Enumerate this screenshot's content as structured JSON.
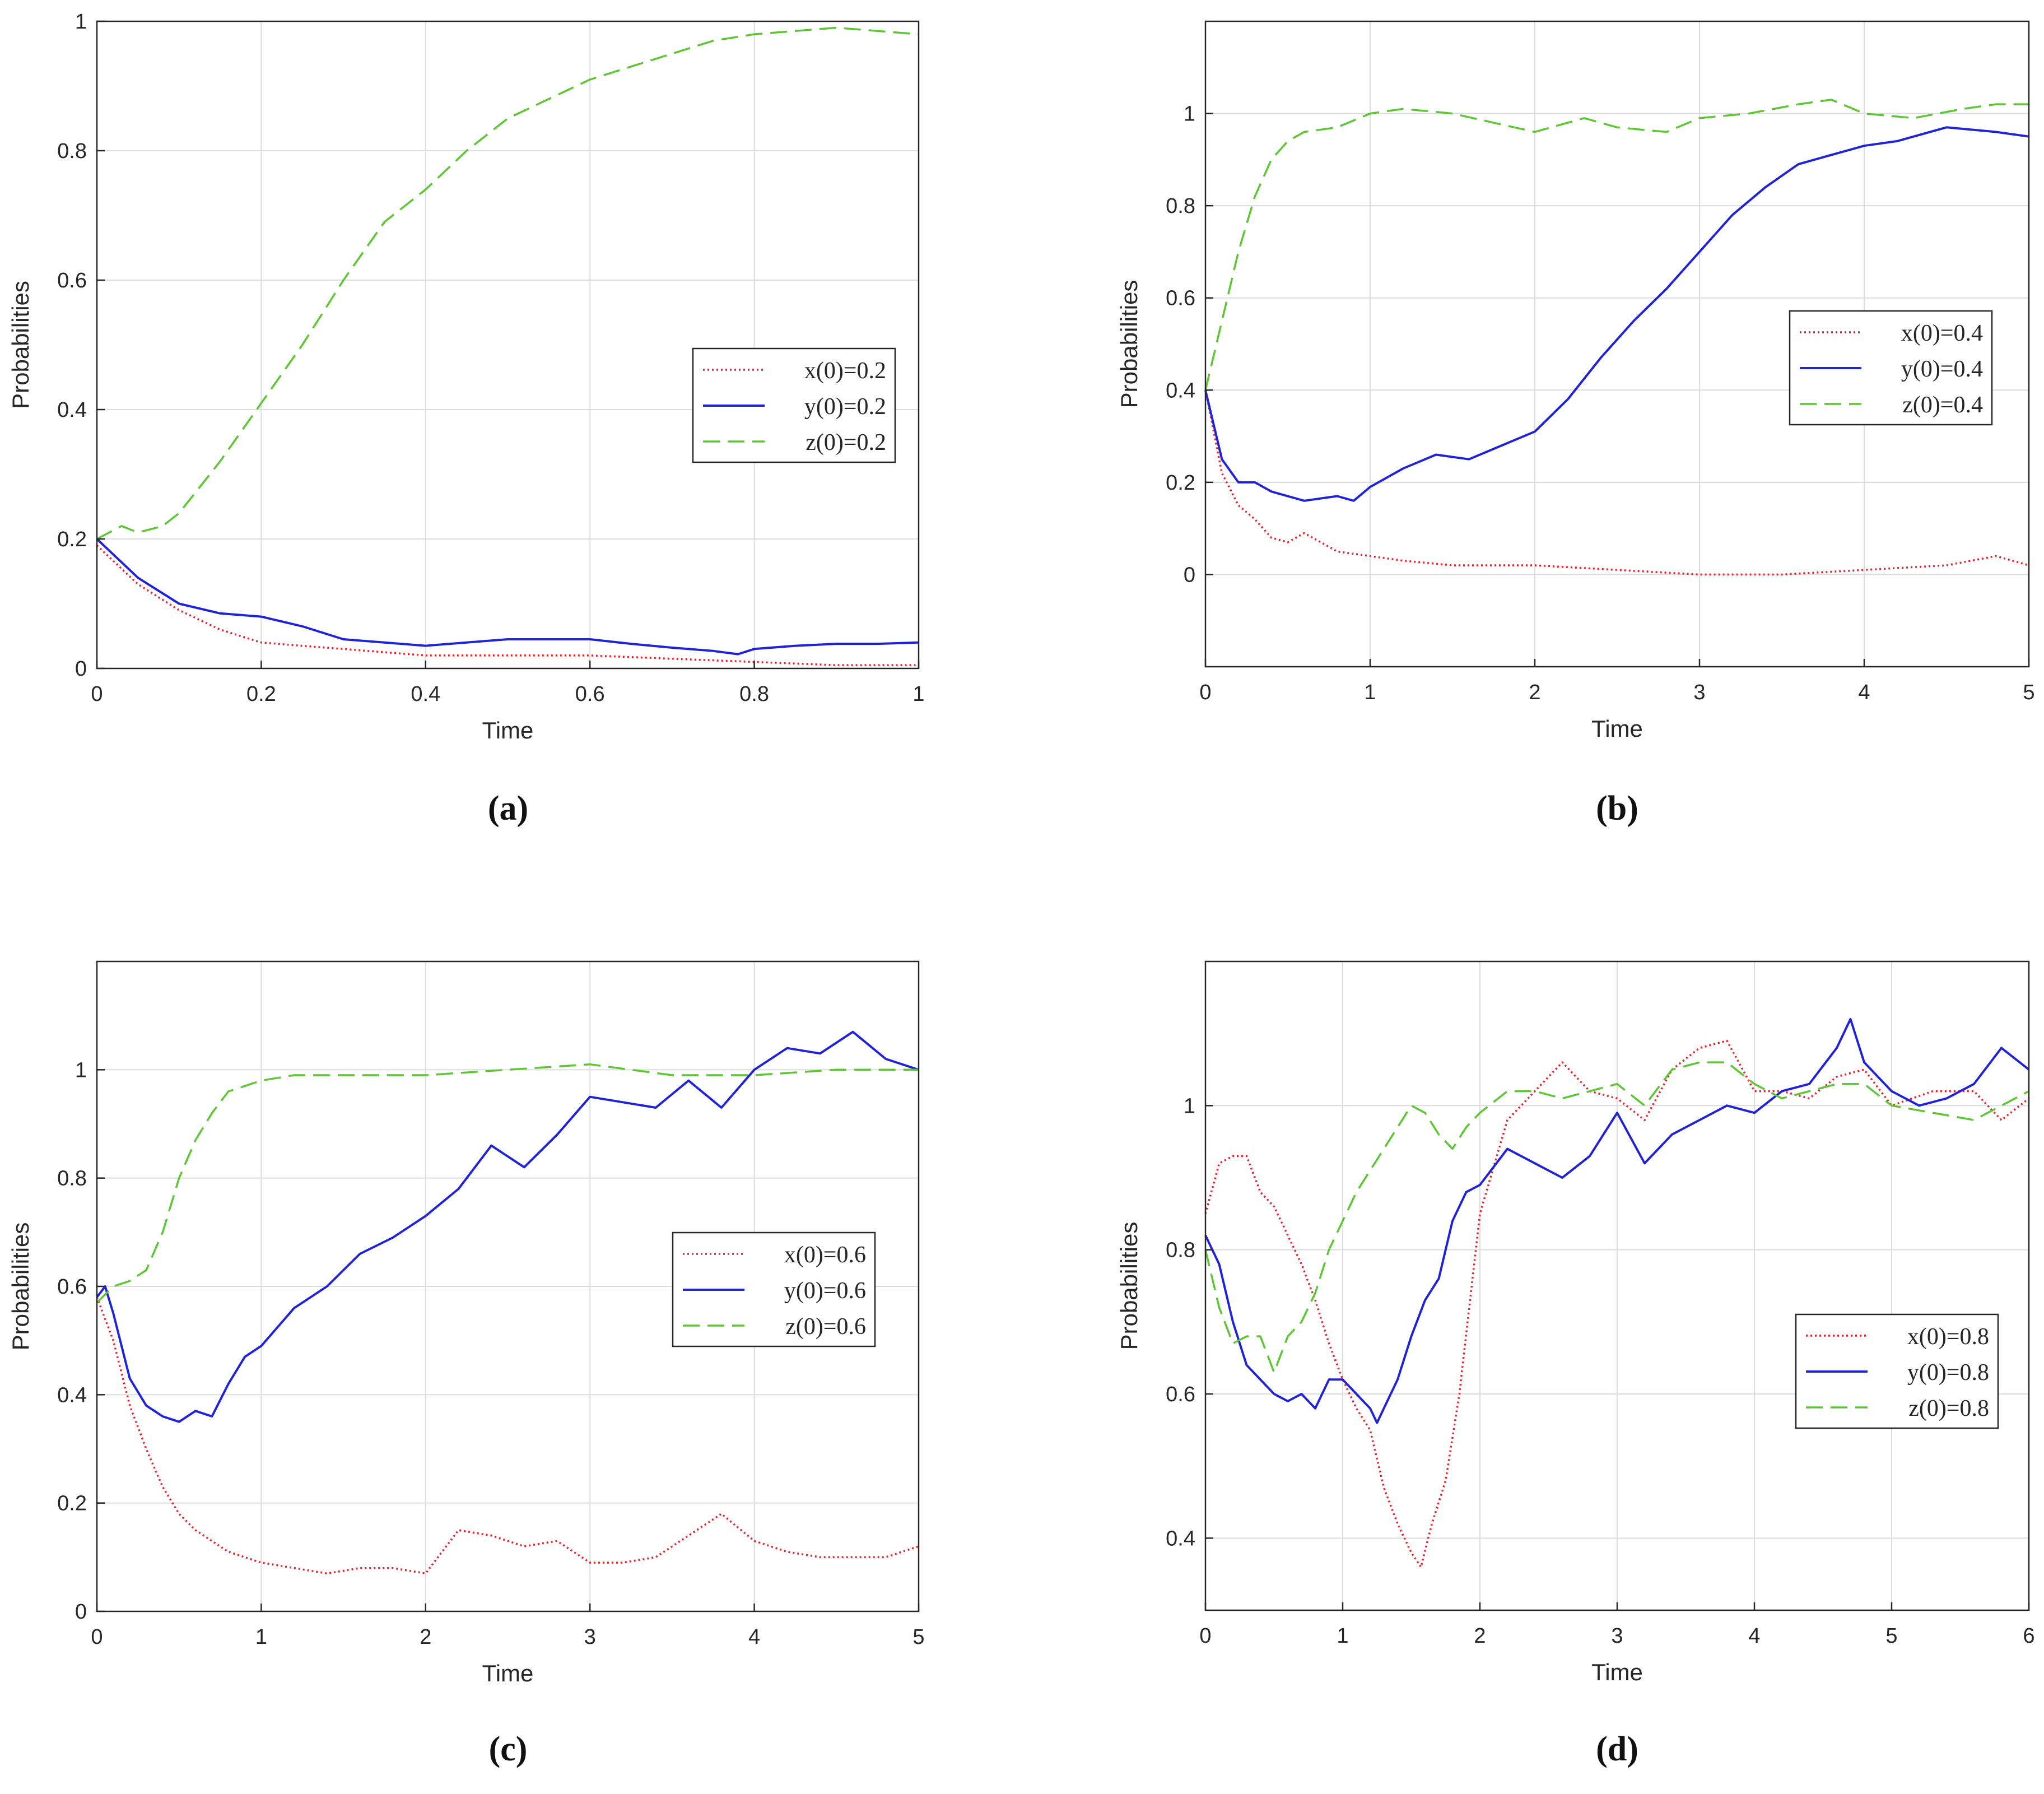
{
  "figure": {
    "panels": [
      "(a)",
      "(b)",
      "(c)",
      "(d)"
    ]
  },
  "chart_data": [
    {
      "id": "a",
      "caption": "(a)",
      "type": "line",
      "xlabel": "Time",
      "ylabel": "Probabilities",
      "xlim": [
        0,
        1
      ],
      "ylim": [
        0,
        1
      ],
      "xticks": [
        0,
        0.2,
        0.4,
        0.6,
        0.8,
        1
      ],
      "xtick_labels": [
        "0",
        "0.2",
        "0.4",
        "0.6",
        "0.8",
        "1"
      ],
      "yticks": [
        0,
        0.2,
        0.4,
        0.6,
        0.8,
        1
      ],
      "ytick_labels": [
        "0",
        "0.2",
        "0.4",
        "0.6",
        "0.8",
        "1"
      ],
      "grid": true,
      "legend_position": "center-right",
      "series": [
        {
          "name": "x(0)=0.2",
          "color": "#e8202a",
          "style": "dotted",
          "x": [
            0,
            0.05,
            0.1,
            0.15,
            0.2,
            0.25,
            0.3,
            0.35,
            0.4,
            0.5,
            0.6,
            0.7,
            0.8,
            0.9,
            1.0
          ],
          "y": [
            0.19,
            0.13,
            0.09,
            0.06,
            0.04,
            0.035,
            0.03,
            0.025,
            0.02,
            0.02,
            0.02,
            0.015,
            0.01,
            0.005,
            0.005
          ]
        },
        {
          "name": "y(0)=0.2",
          "color": "#1f22d8",
          "style": "solid",
          "x": [
            0,
            0.05,
            0.1,
            0.15,
            0.2,
            0.25,
            0.3,
            0.35,
            0.4,
            0.45,
            0.5,
            0.55,
            0.6,
            0.65,
            0.7,
            0.75,
            0.78,
            0.8,
            0.85,
            0.9,
            0.95,
            1.0
          ],
          "y": [
            0.2,
            0.14,
            0.1,
            0.085,
            0.08,
            0.065,
            0.045,
            0.04,
            0.035,
            0.04,
            0.045,
            0.045,
            0.045,
            0.038,
            0.032,
            0.027,
            0.022,
            0.03,
            0.035,
            0.038,
            0.038,
            0.04
          ]
        },
        {
          "name": "z(0)=0.2",
          "color": "#5cc733",
          "style": "dashed",
          "x": [
            0,
            0.03,
            0.05,
            0.08,
            0.1,
            0.15,
            0.2,
            0.25,
            0.3,
            0.35,
            0.4,
            0.45,
            0.5,
            0.55,
            0.6,
            0.65,
            0.7,
            0.75,
            0.8,
            0.85,
            0.9,
            0.95,
            1.0
          ],
          "y": [
            0.2,
            0.22,
            0.21,
            0.22,
            0.24,
            0.32,
            0.41,
            0.5,
            0.6,
            0.69,
            0.74,
            0.8,
            0.85,
            0.88,
            0.91,
            0.93,
            0.95,
            0.97,
            0.98,
            0.985,
            0.99,
            0.985,
            0.98
          ]
        }
      ],
      "legend": [
        "x(0)=0.2",
        "y(0)=0.2",
        "z(0)=0.2"
      ]
    },
    {
      "id": "b",
      "caption": "(b)",
      "type": "line",
      "xlabel": "Time",
      "ylabel": "Probabilities",
      "xlim": [
        0,
        5
      ],
      "ylim": [
        -0.2,
        1.2
      ],
      "xticks": [
        0,
        1,
        2,
        3,
        4,
        5
      ],
      "xtick_labels": [
        "0",
        "1",
        "2",
        "3",
        "4",
        "5"
      ],
      "yticks": [
        0,
        0.2,
        0.4,
        0.6,
        0.8,
        1
      ],
      "ytick_labels": [
        "0",
        "0.2",
        "0.4",
        "0.6",
        "0.8",
        "1"
      ],
      "grid": true,
      "legend_position": "center-right",
      "series": [
        {
          "name": "x(0)=0.4",
          "color": "#e8202a",
          "style": "dotted",
          "x": [
            0,
            0.1,
            0.2,
            0.3,
            0.4,
            0.5,
            0.6,
            0.7,
            0.8,
            1.0,
            1.2,
            1.5,
            2.0,
            2.5,
            3.0,
            3.5,
            4.0,
            4.5,
            4.8,
            5.0
          ],
          "y": [
            0.4,
            0.22,
            0.15,
            0.12,
            0.08,
            0.07,
            0.09,
            0.07,
            0.05,
            0.04,
            0.03,
            0.02,
            0.02,
            0.01,
            0.0,
            0.0,
            0.01,
            0.02,
            0.04,
            0.02
          ]
        },
        {
          "name": "y(0)=0.4",
          "color": "#1f22d8",
          "style": "solid",
          "x": [
            0,
            0.1,
            0.2,
            0.3,
            0.4,
            0.6,
            0.8,
            0.9,
            1.0,
            1.2,
            1.4,
            1.6,
            1.8,
            2.0,
            2.2,
            2.4,
            2.6,
            2.8,
            3.0,
            3.2,
            3.4,
            3.6,
            3.8,
            4.0,
            4.2,
            4.5,
            4.8,
            5.0
          ],
          "y": [
            0.4,
            0.25,
            0.2,
            0.2,
            0.18,
            0.16,
            0.17,
            0.16,
            0.19,
            0.23,
            0.26,
            0.25,
            0.28,
            0.31,
            0.38,
            0.47,
            0.55,
            0.62,
            0.7,
            0.78,
            0.84,
            0.89,
            0.91,
            0.93,
            0.94,
            0.97,
            0.96,
            0.95
          ]
        },
        {
          "name": "z(0)=0.4",
          "color": "#5cc733",
          "style": "dashed",
          "x": [
            0,
            0.1,
            0.2,
            0.3,
            0.4,
            0.5,
            0.6,
            0.8,
            1.0,
            1.2,
            1.5,
            2.0,
            2.3,
            2.5,
            2.8,
            3.0,
            3.3,
            3.6,
            3.8,
            4.0,
            4.3,
            4.6,
            4.8,
            5.0
          ],
          "y": [
            0.4,
            0.55,
            0.7,
            0.82,
            0.9,
            0.94,
            0.96,
            0.97,
            1.0,
            1.01,
            1.0,
            0.96,
            0.99,
            0.97,
            0.96,
            0.99,
            1.0,
            1.02,
            1.03,
            1.0,
            0.99,
            1.01,
            1.02,
            1.02
          ]
        }
      ],
      "legend": [
        "x(0)=0.4",
        "y(0)=0.4",
        "z(0)=0.4"
      ]
    },
    {
      "id": "c",
      "caption": "(c)",
      "type": "line",
      "xlabel": "Time",
      "ylabel": "Probabilities",
      "xlim": [
        0,
        5
      ],
      "ylim": [
        0,
        1.2
      ],
      "xticks": [
        0,
        1,
        2,
        3,
        4,
        5
      ],
      "xtick_labels": [
        "0",
        "1",
        "2",
        "3",
        "4",
        "5"
      ],
      "yticks": [
        0,
        0.2,
        0.4,
        0.6,
        0.8,
        1
      ],
      "ytick_labels": [
        "0",
        "0.2",
        "0.4",
        "0.6",
        "0.8",
        "1"
      ],
      "grid": true,
      "legend_position": "center-right",
      "series": [
        {
          "name": "x(0)=0.6",
          "color": "#e8202a",
          "style": "dotted",
          "x": [
            0,
            0.1,
            0.2,
            0.3,
            0.4,
            0.5,
            0.6,
            0.8,
            1.0,
            1.2,
            1.4,
            1.6,
            1.8,
            2.0,
            2.2,
            2.4,
            2.6,
            2.8,
            3.0,
            3.2,
            3.4,
            3.6,
            3.8,
            4.0,
            4.2,
            4.4,
            4.6,
            4.8,
            5.0
          ],
          "y": [
            0.58,
            0.5,
            0.38,
            0.3,
            0.23,
            0.18,
            0.15,
            0.11,
            0.09,
            0.08,
            0.07,
            0.08,
            0.08,
            0.07,
            0.15,
            0.14,
            0.12,
            0.13,
            0.09,
            0.09,
            0.1,
            0.14,
            0.18,
            0.13,
            0.11,
            0.1,
            0.1,
            0.1,
            0.12
          ]
        },
        {
          "name": "y(0)=0.6",
          "color": "#1f22d8",
          "style": "solid",
          "x": [
            0,
            0.05,
            0.1,
            0.2,
            0.3,
            0.4,
            0.5,
            0.6,
            0.7,
            0.8,
            0.9,
            1.0,
            1.2,
            1.4,
            1.6,
            1.8,
            2.0,
            2.2,
            2.4,
            2.6,
            2.8,
            3.0,
            3.2,
            3.4,
            3.6,
            3.8,
            4.0,
            4.2,
            4.4,
            4.6,
            4.8,
            5.0
          ],
          "y": [
            0.58,
            0.6,
            0.55,
            0.43,
            0.38,
            0.36,
            0.35,
            0.37,
            0.36,
            0.42,
            0.47,
            0.49,
            0.56,
            0.6,
            0.66,
            0.69,
            0.73,
            0.78,
            0.86,
            0.82,
            0.88,
            0.95,
            0.94,
            0.93,
            0.98,
            0.93,
            1.0,
            1.04,
            1.03,
            1.07,
            1.02,
            1.0
          ]
        },
        {
          "name": "z(0)=0.6",
          "color": "#5cc733",
          "style": "dashed",
          "x": [
            0,
            0.1,
            0.2,
            0.3,
            0.4,
            0.5,
            0.6,
            0.7,
            0.8,
            0.9,
            1.0,
            1.2,
            1.5,
            2.0,
            2.5,
            3.0,
            3.5,
            4.0,
            4.5,
            5.0
          ],
          "y": [
            0.57,
            0.6,
            0.61,
            0.63,
            0.7,
            0.8,
            0.87,
            0.92,
            0.96,
            0.97,
            0.98,
            0.99,
            0.99,
            0.99,
            1.0,
            1.01,
            0.99,
            0.99,
            1.0,
            1.0
          ]
        }
      ],
      "legend": [
        "x(0)=0.6",
        "y(0)=0.6",
        "z(0)=0.6"
      ]
    },
    {
      "id": "d",
      "caption": "(d)",
      "type": "line",
      "xlabel": "Time",
      "ylabel": "Probabilities",
      "xlim": [
        0,
        6
      ],
      "ylim": [
        0.3,
        1.2
      ],
      "xticks": [
        0,
        1,
        2,
        3,
        4,
        5,
        6
      ],
      "xtick_labels": [
        "0",
        "1",
        "2",
        "3",
        "4",
        "5",
        "6"
      ],
      "yticks": [
        0.4,
        0.6,
        0.8,
        1
      ],
      "ytick_labels": [
        "0.4",
        "0.6",
        "0.8",
        "1"
      ],
      "grid": true,
      "legend_position": "center-right",
      "series": [
        {
          "name": "x(0)=0.8",
          "color": "#e8202a",
          "style": "dotted",
          "x": [
            0,
            0.1,
            0.2,
            0.3,
            0.4,
            0.5,
            0.6,
            0.7,
            0.8,
            0.9,
            1.0,
            1.1,
            1.2,
            1.3,
            1.4,
            1.5,
            1.57,
            1.65,
            1.75,
            1.85,
            2.0,
            2.2,
            2.4,
            2.6,
            2.8,
            3.0,
            3.2,
            3.4,
            3.6,
            3.8,
            4.0,
            4.2,
            4.4,
            4.6,
            4.8,
            5.0,
            5.3,
            5.6,
            5.8,
            6.0
          ],
          "y": [
            0.85,
            0.92,
            0.93,
            0.93,
            0.88,
            0.86,
            0.82,
            0.78,
            0.73,
            0.67,
            0.62,
            0.58,
            0.55,
            0.47,
            0.42,
            0.38,
            0.36,
            0.42,
            0.48,
            0.6,
            0.85,
            0.98,
            1.02,
            1.06,
            1.02,
            1.01,
            0.98,
            1.05,
            1.08,
            1.09,
            1.02,
            1.02,
            1.01,
            1.04,
            1.05,
            1.0,
            1.02,
            1.02,
            0.98,
            1.01
          ]
        },
        {
          "name": "y(0)=0.8",
          "color": "#1f22d8",
          "style": "solid",
          "x": [
            0,
            0.1,
            0.2,
            0.3,
            0.4,
            0.5,
            0.6,
            0.7,
            0.8,
            0.9,
            1.0,
            1.1,
            1.2,
            1.25,
            1.3,
            1.4,
            1.5,
            1.6,
            1.7,
            1.8,
            1.9,
            2.0,
            2.2,
            2.4,
            2.6,
            2.8,
            3.0,
            3.2,
            3.4,
            3.6,
            3.8,
            4.0,
            4.2,
            4.4,
            4.6,
            4.7,
            4.8,
            5.0,
            5.2,
            5.4,
            5.6,
            5.8,
            6.0
          ],
          "y": [
            0.82,
            0.78,
            0.7,
            0.64,
            0.62,
            0.6,
            0.59,
            0.6,
            0.58,
            0.62,
            0.62,
            0.6,
            0.58,
            0.56,
            0.58,
            0.62,
            0.68,
            0.73,
            0.76,
            0.84,
            0.88,
            0.89,
            0.94,
            0.92,
            0.9,
            0.93,
            0.99,
            0.92,
            0.96,
            0.98,
            1.0,
            0.99,
            1.02,
            1.03,
            1.08,
            1.12,
            1.06,
            1.02,
            1.0,
            1.01,
            1.03,
            1.08,
            1.05
          ]
        },
        {
          "name": "z(0)=0.8",
          "color": "#5cc733",
          "style": "dashed",
          "x": [
            0,
            0.1,
            0.2,
            0.3,
            0.4,
            0.5,
            0.6,
            0.7,
            0.8,
            0.9,
            1.0,
            1.1,
            1.2,
            1.3,
            1.4,
            1.5,
            1.6,
            1.7,
            1.8,
            1.9,
            2.0,
            2.2,
            2.4,
            2.6,
            2.8,
            3.0,
            3.2,
            3.4,
            3.6,
            3.8,
            4.0,
            4.2,
            4.4,
            4.6,
            4.8,
            5.0,
            5.3,
            5.6,
            5.8,
            6.0
          ],
          "y": [
            0.8,
            0.72,
            0.67,
            0.68,
            0.68,
            0.63,
            0.68,
            0.7,
            0.74,
            0.8,
            0.84,
            0.88,
            0.91,
            0.94,
            0.97,
            1.0,
            0.99,
            0.96,
            0.94,
            0.97,
            0.99,
            1.02,
            1.02,
            1.01,
            1.02,
            1.03,
            1.0,
            1.05,
            1.06,
            1.06,
            1.03,
            1.01,
            1.02,
            1.03,
            1.03,
            1.0,
            0.99,
            0.98,
            1.0,
            1.02
          ]
        }
      ],
      "legend": [
        "x(0)=0.8",
        "y(0)=0.8",
        "z(0)=0.8"
      ]
    }
  ]
}
